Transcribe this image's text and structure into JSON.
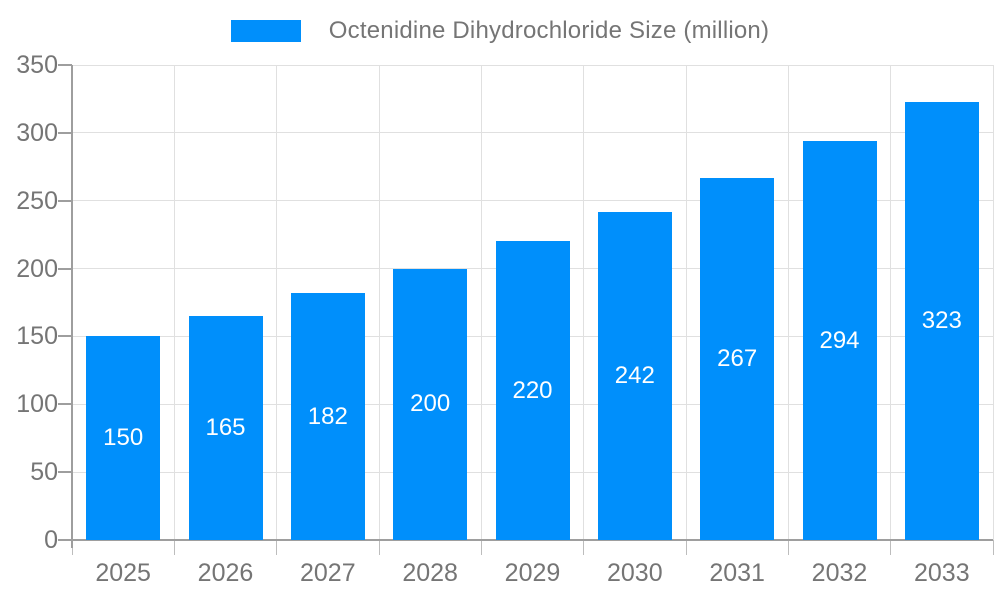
{
  "legend": {
    "label": "Octenidine Dihydrochloride Size (million)"
  },
  "colors": {
    "bar": "#008FFB",
    "grid": "#e0e0e0",
    "axis": "#9e9e9e",
    "tick_x": "#bdbdbd",
    "axis_label": "#757575",
    "value_label": "#ffffff",
    "background": "#ffffff"
  },
  "chart_data": {
    "type": "bar",
    "title": "",
    "xlabel": "",
    "ylabel": "",
    "categories": [
      "2025",
      "2026",
      "2027",
      "2028",
      "2029",
      "2030",
      "2031",
      "2032",
      "2033"
    ],
    "series": [
      {
        "name": "Octenidine Dihydrochloride Size (million)",
        "values": [
          150,
          165,
          182,
          200,
          220,
          242,
          267,
          294,
          323
        ]
      }
    ],
    "ylim": [
      0,
      350
    ],
    "yticks": [
      0,
      50,
      100,
      150,
      200,
      250,
      300,
      350
    ],
    "grid": true,
    "legend_position": "top",
    "value_labels": "inside-center"
  }
}
